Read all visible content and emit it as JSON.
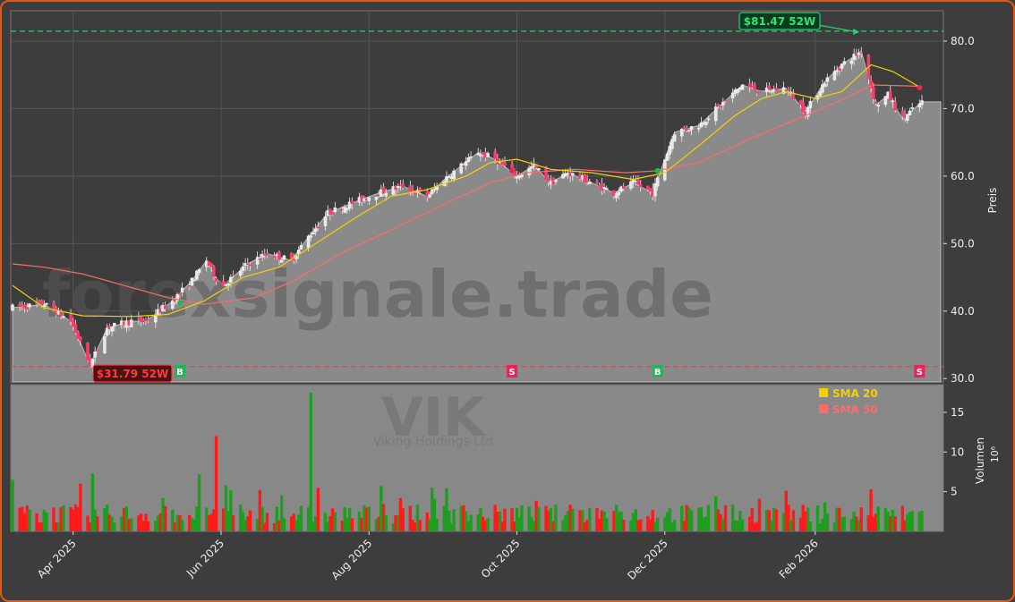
{
  "chart_data": {
    "type": "candlestick",
    "watermark": "forexsignale.trade",
    "ticker_watermark": "VIK",
    "company_watermark": "Viking Holdings Ltd",
    "price_axis_label": "Preis",
    "volume_axis_label": "Volumen",
    "volume_axis_unit": "10⁶",
    "x_tick_labels": [
      "Apr 2025",
      "Jun 2025",
      "Aug 2025",
      "Oct 2025",
      "Dec 2025",
      "Feb 2026"
    ],
    "x_tick_dates": [
      "2025-04-01",
      "2025-06-01",
      "2025-08-01",
      "2025-10-01",
      "2025-12-01",
      "2026-02-01"
    ],
    "price_ticks": [
      "30.0",
      "40.0",
      "50.0",
      "60.0",
      "70.0",
      "80.0"
    ],
    "price_ylim": [
      29.5,
      84.5
    ],
    "volume_ticks": [
      "5",
      "10",
      "15"
    ],
    "volume_ylim": [
      0,
      18.5
    ],
    "date_range": [
      "2025-03-07",
      "2026-03-17"
    ],
    "legend": {
      "sma20": "SMA 20",
      "sma50": "SMA 50"
    },
    "colors": {
      "up": "#1e9e1e",
      "down": "#ff1a1a",
      "sma20": "#f5d000",
      "sma50": "#ff6b6b",
      "high_line": "#2ecc71",
      "low_line": "#ff3b3b",
      "buy": "#1db954",
      "sell": "#ee2255"
    },
    "high_52w": {
      "label": "$81.47 52W",
      "value": 81.47,
      "date": "2026-02-20"
    },
    "low_52w": {
      "label": "$31.79 52W",
      "value": 31.79,
      "date": "2025-04-08"
    },
    "signals": [
      {
        "type": "B",
        "date": "2025-05-15"
      },
      {
        "type": "S",
        "date": "2025-09-29"
      },
      {
        "type": "B",
        "date": "2025-11-28"
      },
      {
        "type": "S",
        "date": "2026-03-16"
      }
    ],
    "price_path": [
      [
        "2025-03-07",
        40.5
      ],
      [
        "2025-03-20",
        41.0
      ],
      [
        "2025-03-31",
        38.5
      ],
      [
        "2025-04-08",
        32.0
      ],
      [
        "2025-04-15",
        37.5
      ],
      [
        "2025-04-25",
        38.5
      ],
      [
        "2025-05-01",
        38.5
      ],
      [
        "2025-05-12",
        41.5
      ],
      [
        "2025-05-20",
        44.5
      ],
      [
        "2025-05-26",
        47.5
      ],
      [
        "2025-06-01",
        43.5
      ],
      [
        "2025-06-12",
        47.0
      ],
      [
        "2025-06-20",
        48.5
      ],
      [
        "2025-06-30",
        47.5
      ],
      [
        "2025-07-07",
        51.0
      ],
      [
        "2025-07-15",
        54.5
      ],
      [
        "2025-07-25",
        56.0
      ],
      [
        "2025-08-05",
        57.5
      ],
      [
        "2025-08-15",
        58.5
      ],
      [
        "2025-08-25",
        57.0
      ],
      [
        "2025-09-01",
        59.5
      ],
      [
        "2025-09-08",
        61.5
      ],
      [
        "2025-09-15",
        63.5
      ],
      [
        "2025-09-22",
        62.5
      ],
      [
        "2025-10-01",
        60.0
      ],
      [
        "2025-10-08",
        61.5
      ],
      [
        "2025-10-15",
        59.0
      ],
      [
        "2025-10-22",
        60.5
      ],
      [
        "2025-11-01",
        59.0
      ],
      [
        "2025-11-10",
        57.5
      ],
      [
        "2025-11-18",
        59.0
      ],
      [
        "2025-11-26",
        57.5
      ],
      [
        "2025-12-01",
        62.5
      ],
      [
        "2025-12-05",
        66.5
      ],
      [
        "2025-12-15",
        67.5
      ],
      [
        "2025-12-24",
        70.5
      ],
      [
        "2026-01-02",
        73.5
      ],
      [
        "2026-01-10",
        72.5
      ],
      [
        "2026-01-20",
        73.0
      ],
      [
        "2026-01-28",
        69.5
      ],
      [
        "2026-02-05",
        74.0
      ],
      [
        "2026-02-12",
        76.5
      ],
      [
        "2026-02-20",
        78.5
      ],
      [
        "2026-02-26",
        70.5
      ],
      [
        "2026-03-03",
        72.0
      ],
      [
        "2026-03-09",
        68.5
      ],
      [
        "2026-03-17",
        71.0
      ]
    ],
    "sma20": [
      [
        "2025-03-07",
        43.8
      ],
      [
        "2025-03-20",
        40.5
      ],
      [
        "2025-04-05",
        39.3
      ],
      [
        "2025-04-25",
        39.2
      ],
      [
        "2025-05-10",
        39.5
      ],
      [
        "2025-05-25",
        41.5
      ],
      [
        "2025-06-10",
        45.0
      ],
      [
        "2025-06-25",
        46.5
      ],
      [
        "2025-07-10",
        50.0
      ],
      [
        "2025-07-25",
        53.5
      ],
      [
        "2025-08-10",
        57.0
      ],
      [
        "2025-08-25",
        58.0
      ],
      [
        "2025-09-10",
        60.0
      ],
      [
        "2025-09-20",
        62.0
      ],
      [
        "2025-10-01",
        62.5
      ],
      [
        "2025-10-15",
        61.0
      ],
      [
        "2025-11-01",
        60.5
      ],
      [
        "2025-11-18",
        59.5
      ],
      [
        "2025-12-01",
        60.5
      ],
      [
        "2025-12-15",
        64.5
      ],
      [
        "2025-12-30",
        69.0
      ],
      [
        "2026-01-10",
        71.5
      ],
      [
        "2026-01-20",
        72.5
      ],
      [
        "2026-02-01",
        71.5
      ],
      [
        "2026-02-12",
        72.5
      ],
      [
        "2026-02-24",
        76.5
      ],
      [
        "2026-03-05",
        75.5
      ],
      [
        "2026-03-17",
        73.0
      ]
    ],
    "sma50": [
      [
        "2025-03-07",
        47.0
      ],
      [
        "2025-03-20",
        46.5
      ],
      [
        "2025-04-05",
        45.5
      ],
      [
        "2025-04-25",
        43.5
      ],
      [
        "2025-05-10",
        42.0
      ],
      [
        "2025-05-25",
        41.0
      ],
      [
        "2025-06-15",
        42.0
      ],
      [
        "2025-07-01",
        44.5
      ],
      [
        "2025-07-20",
        48.5
      ],
      [
        "2025-08-10",
        52.0
      ],
      [
        "2025-08-30",
        55.5
      ],
      [
        "2025-09-20",
        59.0
      ],
      [
        "2025-10-05",
        60.5
      ],
      [
        "2025-10-25",
        61.0
      ],
      [
        "2025-11-15",
        60.5
      ],
      [
        "2025-11-28",
        60.8
      ],
      [
        "2025-12-15",
        62.0
      ],
      [
        "2026-01-05",
        65.5
      ],
      [
        "2026-01-25",
        68.5
      ],
      [
        "2026-02-10",
        71.0
      ],
      [
        "2026-02-25",
        73.5
      ],
      [
        "2026-03-17",
        73.3
      ]
    ]
  }
}
